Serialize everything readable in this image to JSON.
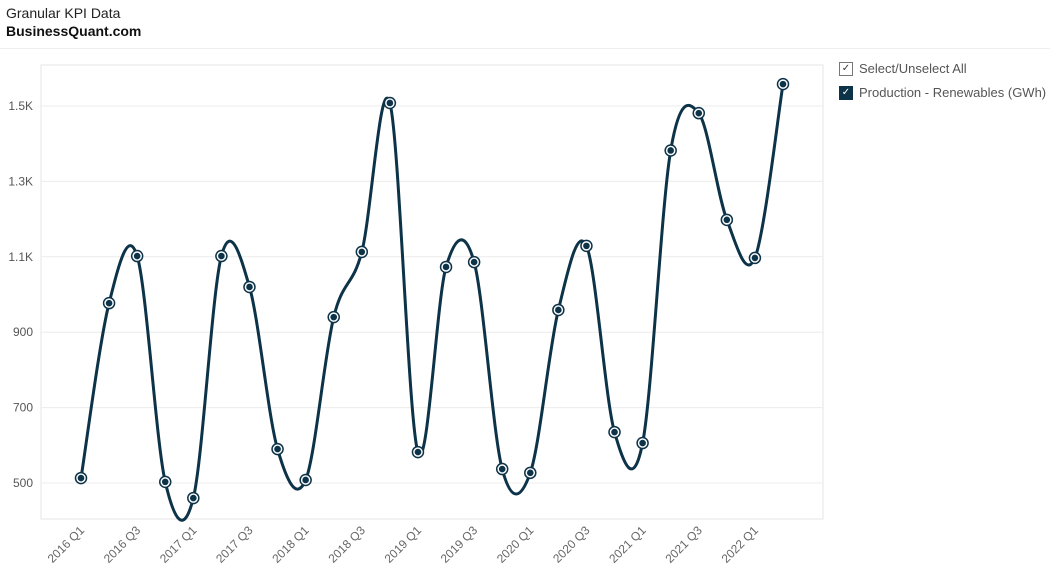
{
  "header": {
    "title": "Granular KPI Data",
    "source": "BusinessQuant.com"
  },
  "legend": {
    "select_all": "Select/Unselect All",
    "check": "✓"
  },
  "chart_data": {
    "type": "line",
    "title": "",
    "xlabel": "",
    "ylabel": "",
    "x": [
      "2016 Q1",
      "2016 Q2",
      "2016 Q3",
      "2016 Q4",
      "2017 Q1",
      "2017 Q2",
      "2017 Q3",
      "2017 Q4",
      "2018 Q1",
      "2018 Q2",
      "2018 Q3",
      "2018 Q4",
      "2019 Q1",
      "2019 Q2",
      "2019 Q3",
      "2019 Q4",
      "2020 Q1",
      "2020 Q2",
      "2020 Q3",
      "2020 Q4",
      "2021 Q1",
      "2021 Q2",
      "2021 Q3",
      "2021 Q4",
      "2022 Q1",
      "2022 Q2"
    ],
    "x_tick_labels": [
      "2016 Q1",
      "2016 Q3",
      "2017 Q1",
      "2017 Q3",
      "2018 Q1",
      "2018 Q3",
      "2019 Q1",
      "2019 Q3",
      "2020 Q1",
      "2020 Q3",
      "2021 Q1",
      "2021 Q3",
      "2022 Q1"
    ],
    "series": [
      {
        "name": "Production - Renewables (GWh)",
        "color": "#0d3349",
        "values": [
          513,
          977,
          1102,
          503,
          460,
          1102,
          1020,
          590,
          508,
          940,
          1113,
          1508,
          582,
          1073,
          1086,
          537,
          527,
          959,
          1129,
          635,
          606,
          1382,
          1481,
          1198,
          1097,
          1558
        ]
      }
    ],
    "y_ticks": [
      500,
      700,
      900,
      1100,
      1300,
      1500
    ],
    "y_tick_labels": [
      "500",
      "700",
      "900",
      "1.1K",
      "1.3K",
      "1.5K"
    ],
    "ylim": [
      390,
      1600
    ],
    "grid": true,
    "legend_position": "right"
  }
}
